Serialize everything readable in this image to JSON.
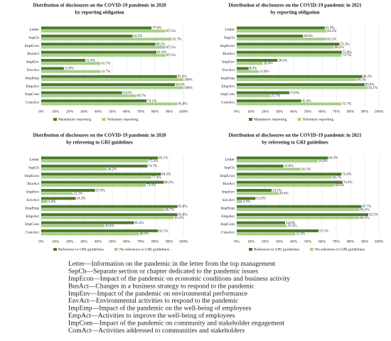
{
  "chart_data": [
    {
      "type": "barh",
      "title": "Distribution of disclosures on the COVID-19 pandemic in 2020",
      "subtitle": "by reporting obligation",
      "categories": [
        "Letter",
        "SepCh",
        "ImpEcon",
        "BusAct",
        "ImpEnv",
        "EnvAct",
        "ImpEmp",
        "EmpAct",
        "ImpCom",
        "ComAct"
      ],
      "series": [
        {
          "name": "Mandatory reporting",
          "color": "#4a7a2c",
          "values": [
            77.6,
            64.2,
            80.2,
            81.0,
            31.0,
            15.9,
            95.4,
            94.0,
            56.9,
            74.1
          ],
          "value_labels": [
            "77.6%",
            "64.2%",
            "80.2%",
            "81.0%",
            "31.0%",
            "15.9%",
            "95.4%",
            "94.0%",
            "56.9%",
            "74.1%"
          ]
        },
        {
          "name": "Voluntary reporting",
          "color": "#a8cf88",
          "values": [
            87.5,
            91.7,
            87.5,
            87.5,
            41.7,
            41.7,
            100,
            100,
            66.7,
            95.8
          ],
          "value_labels": [
            "87.5%",
            "91.7%",
            "87.5%",
            "87.5%",
            "41.7%",
            "41.7%",
            "100%",
            "100%",
            "66.7%",
            "95.8%"
          ]
        }
      ],
      "xlim": [
        0,
        100
      ],
      "xticks": [
        {
          "value": 0,
          "label": "0%"
        },
        {
          "value": 10,
          "label": "10%"
        },
        {
          "value": 20,
          "label": "20%"
        },
        {
          "value": 30,
          "label": "30%"
        },
        {
          "value": 40,
          "label": "40%"
        },
        {
          "value": 50,
          "label": "50%"
        },
        {
          "value": 60,
          "label": "60%"
        },
        {
          "value": 70,
          "label": "70%"
        },
        {
          "value": 80,
          "label": "80%"
        },
        {
          "value": 90,
          "label": "90%"
        },
        {
          "value": 100,
          "label": "100%"
        }
      ],
      "grid": true,
      "legend": "bottom"
    },
    {
      "type": "barh",
      "title": "Distribution of disclosures on the COVID-19 pandemic in 2021",
      "subtitle": "by reporting obligation",
      "categories": [
        "Letter",
        "SepCh",
        "ImpEcon",
        "BusAct",
        "ImpEnv",
        "EnvAct",
        "ImpEmp",
        "EmpAct",
        "ImpCom",
        "ComAct"
      ],
      "series": [
        {
          "name": "Mandatory reporting",
          "color": "#4a7a2c",
          "values": [
            61.9,
            46.6,
            72.3,
            73.9,
            28.6,
            8.4,
            88.2,
            89.9,
            37.0,
            45.4
          ],
          "value_labels": [
            "61.9%",
            "46.6%",
            "72.3%",
            "73.9%",
            "28.6%",
            "8.4%",
            "88.2%",
            "89.9%",
            "37.0%",
            "45.4%"
          ]
        },
        {
          "name": "Voluntary reporting",
          "color": "#a8cf88",
          "values": [
            63.2,
            63.2,
            68.4,
            73.7,
            18.4,
            15.8,
            84.2,
            92.1,
            23.7,
            73.7
          ],
          "value_labels": [
            "63.2%",
            "63.2%",
            "68.4%",
            "73.7%",
            "18.4%",
            "15.8%",
            "84.2%",
            "92.1%",
            "23.7%",
            "73.7%"
          ]
        }
      ],
      "xlim": [
        0,
        100
      ],
      "xticks": [
        {
          "value": 0,
          "label": "0%"
        },
        {
          "value": 10,
          "label": "10%"
        },
        {
          "value": 20,
          "label": "20%"
        },
        {
          "value": 30,
          "label": "30%"
        },
        {
          "value": 40,
          "label": "40%"
        },
        {
          "value": 50,
          "label": "50%"
        },
        {
          "value": 60,
          "label": "60%"
        },
        {
          "value": 70,
          "label": "70%"
        },
        {
          "value": 80,
          "label": "80%"
        },
        {
          "value": 90,
          "label": "90%"
        },
        {
          "value": 100,
          "label": "100%"
        }
      ],
      "grid": true,
      "legend": "bottom"
    },
    {
      "type": "barh",
      "title": "Distribution of disclosures on the COVID-19 pandemic in 2020",
      "subtitle": "by refereeing to GRI guidelines",
      "categories": [
        "Letter",
        "SepCh",
        "ImpEcon",
        "BusAct",
        "ImpEnv",
        "EnvAct",
        "ImpEmp",
        "EmpAct",
        "ImpCom",
        "ComAct"
      ],
      "series": [
        {
          "name": "Reference to GRI guidelines",
          "color": "#4a7a2c",
          "values": [
            82.1,
            74.7,
            84.2,
            86.3,
            37.9,
            24.2,
            95.8,
            95.8,
            65.3,
            82.1
          ],
          "value_labels": [
            "82.1%",
            "74.7%",
            "84.2%",
            "86.3%",
            "37.9%",
            "24.2%",
            "95.8%",
            "95.8%",
            "65.3%",
            "82.1%"
          ]
        },
        {
          "name": "No reference to GRI guidelines",
          "color": "#a8cf88",
          "values": [
            75.3,
            46.2,
            77.4,
            73.6,
            22.2,
            4.4,
            86.7,
            93.3,
            44.4,
            68.9
          ],
          "value_labels": [
            "75.3%",
            "46.2%",
            "77.4%",
            "73.6%",
            "22.2%",
            "4.4%",
            "86.7%",
            "93.3%",
            "44.4%",
            "68.9%"
          ]
        }
      ],
      "xlim": [
        0,
        100
      ],
      "xticks": [
        {
          "value": 0,
          "label": "0%"
        },
        {
          "value": 10,
          "label": "10%"
        },
        {
          "value": 20,
          "label": "20%"
        },
        {
          "value": 30,
          "label": "30%"
        },
        {
          "value": 40,
          "label": "40%"
        },
        {
          "value": 50,
          "label": "50%"
        },
        {
          "value": 60,
          "label": "60%"
        },
        {
          "value": 70,
          "label": "70%"
        },
        {
          "value": 80,
          "label": "80%"
        },
        {
          "value": 90,
          "label": "90%"
        },
        {
          "value": 100,
          "label": "100%"
        }
      ],
      "grid": true,
      "legend": "bottom"
    },
    {
      "type": "barh",
      "title": "Distribution of disclosures on the COVID-19 pandemic in 2021",
      "subtitle": "by refereeing to GRI guidelines",
      "categories": [
        "Letter",
        "SepCh",
        "ImpEcon",
        "BusAct",
        "ImpEnv",
        "EnvAct",
        "ImpEmp",
        "EmpAct",
        "ImpCom",
        "ComAct"
      ],
      "series": [
        {
          "name": "Reference to GRI guidelines",
          "color": "#4a7a2c",
          "values": [
            64.2,
            32.8,
            73.6,
            74.4,
            24.5,
            13.2,
            87.7,
            92.5,
            34.0,
            57.5
          ],
          "value_labels": [
            "64.2%",
            "32.8%",
            "73.6%",
            "74.4%",
            "24.5%",
            "13.2%",
            "87.7%",
            "92.5%",
            "34.0%",
            "57.5%"
          ]
        },
        {
          "name": "No reference to GRI guidelines",
          "color": "#a8cf88",
          "values": [
            56.9,
            45.1,
            66.7,
            68.6,
            29.4,
            3.9,
            86.3,
            86.3,
            35.3,
            41.2
          ],
          "value_labels": [
            "56.9%",
            "45.1%",
            "66.7%",
            "68.6%",
            "29.4%",
            "3.9%",
            "86.3%",
            "86.3%",
            "35.3%",
            "41.2%"
          ]
        }
      ],
      "xlim": [
        0,
        100
      ],
      "xticks": [
        {
          "value": 0,
          "label": "0%"
        },
        {
          "value": 10,
          "label": "10%"
        },
        {
          "value": 20,
          "label": "20%"
        },
        {
          "value": 30,
          "label": "30%"
        },
        {
          "value": 40,
          "label": "40%"
        },
        {
          "value": 50,
          "label": "50%"
        },
        {
          "value": 60,
          "label": "60%"
        },
        {
          "value": 70,
          "label": "70%"
        },
        {
          "value": 80,
          "label": "80%"
        },
        {
          "value": 90,
          "label": "90%"
        },
        {
          "value": 100,
          "label": "100%"
        }
      ],
      "grid": true,
      "legend": "bottom"
    }
  ],
  "glossary": [
    "Letter—Information on the pandemic in the letter from the top management",
    "SepCh—Separate section or chapter dedicated to the pandemic issues",
    "ImpEcon—Impact of the pandemic on economic conditions and business activity",
    "BusAct—Changes in a business strategy to respond to the pandemic",
    "ImpEnv—Impact of the pandemic on environmental performance",
    "EnvAct—Environmental activities to respond to the pandemic",
    "ImpEmp—Impact of the pandemic on the well-being of employees",
    "EmpAct—Activities to improve the well-being of employees",
    "ImpCom—Impact of the pandemic on community and stakeholder engagement",
    "ComAct—Activities addressed to communities and stakeholders"
  ]
}
